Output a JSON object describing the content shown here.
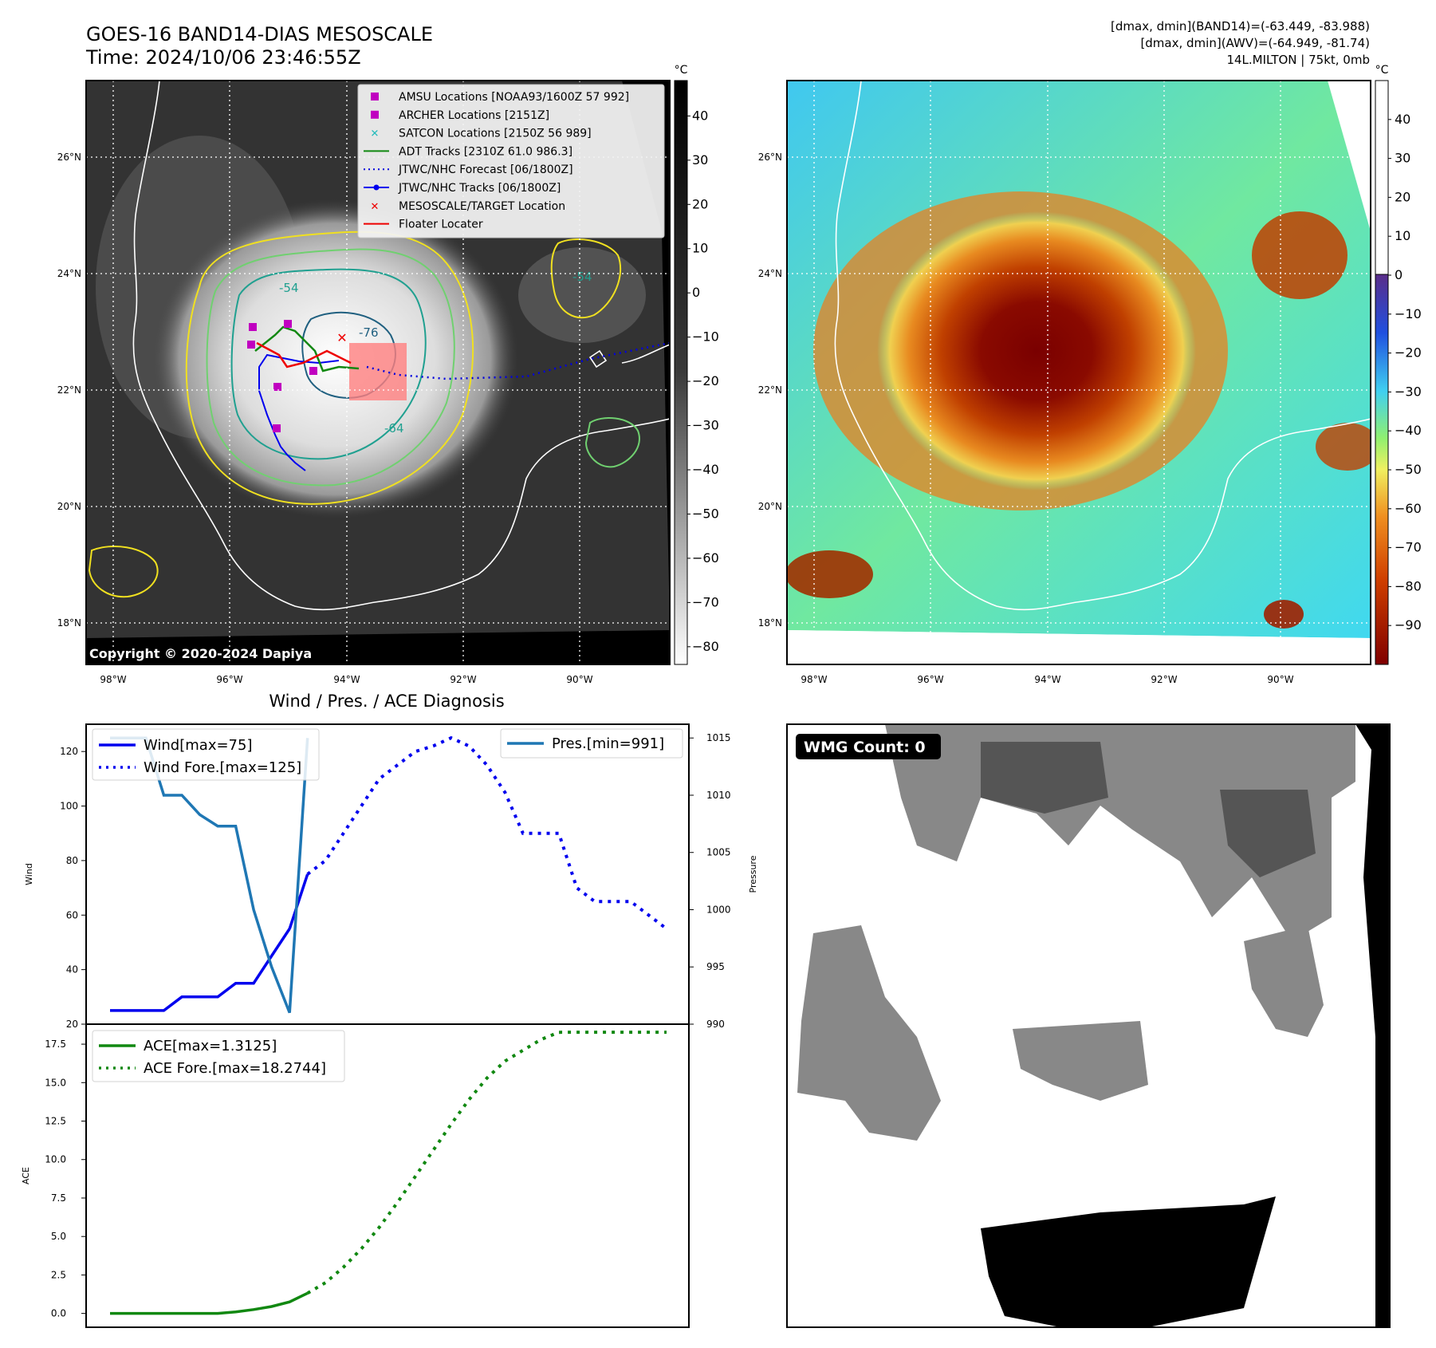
{
  "header": {
    "title_line1": "GOES-16 BAND14-DIAS MESOSCALE",
    "title_line2": "Time: 2024/10/06 23:46:55Z",
    "info_line1": "[dmax, dmin](BAND14)=(-63.449, -83.988)",
    "info_line2": "[dmax, dmin](AWV)=(-64.949, -81.74)",
    "info_line3": "14L.MILTON | 75kt, 0mb"
  },
  "ir_panel": {
    "copyright": "Copyright © 2020-2024 Dapiya",
    "contour_labels": [
      "-54",
      "-76",
      "-64",
      "-54"
    ]
  },
  "legend": [
    {
      "label": "AMSU Locations [NOAA93/1600Z 57 992]",
      "kind": "square",
      "color": "#c000c0"
    },
    {
      "label": "ARCHER Locations [2151Z]",
      "kind": "square",
      "color": "#c000c0"
    },
    {
      "label": "SATCON Locations [2150Z 56 989]",
      "kind": "x",
      "color": "#22bbbb"
    },
    {
      "label": "ADT Tracks [2310Z 61.0 986.3]",
      "kind": "line",
      "color": "#118811"
    },
    {
      "label": "JTWC/NHC Forecast [06/1800Z]",
      "kind": "dotted",
      "color": "#0000dd"
    },
    {
      "label": "JTWC/NHC Tracks [06/1800Z]",
      "kind": "dotline",
      "color": "#0000ee"
    },
    {
      "label": "MESOSCALE/TARGET Location",
      "kind": "x",
      "color": "#ee0000"
    },
    {
      "label": "Floater Locater",
      "kind": "line",
      "color": "#ee0000"
    }
  ],
  "map_axes": {
    "lon_ticks": [
      "98°W",
      "96°W",
      "94°W",
      "92°W",
      "90°W"
    ],
    "lat_ticks": [
      "26°N",
      "24°N",
      "22°N",
      "20°N",
      "18°N"
    ]
  },
  "colorbars": {
    "unit": "°C",
    "ir_ticks": [
      "40",
      "30",
      "20",
      "10",
      "0",
      "−10",
      "−20",
      "−30",
      "−40",
      "−50",
      "−60",
      "−70",
      "−80"
    ],
    "awv_ticks": [
      "40",
      "30",
      "20",
      "10",
      "0",
      "−10",
      "−20",
      "−30",
      "−40",
      "−50",
      "−60",
      "−70",
      "−80",
      "−90"
    ]
  },
  "wmg": {
    "label": "WMG Count: 0"
  },
  "chart_data": [
    {
      "type": "line",
      "title": "Wind / Pres. / ACE Diagnosis",
      "ylabel": "Wind",
      "y2label": "Pressure",
      "ylim": [
        20,
        130
      ],
      "y2lim": [
        990,
        1016.2
      ],
      "yticks": [
        20,
        40,
        60,
        80,
        100,
        120
      ],
      "y2ticks": [
        990,
        995,
        1000,
        1005,
        1010,
        1015
      ],
      "legend_left": [
        "Wind[max=75]",
        "Wind Fore.[max=125]"
      ],
      "legend_right": [
        "Pres.[min=991]"
      ],
      "series": [
        {
          "name": "Wind[max=75]",
          "style": "solid",
          "color": "#0000ee",
          "axis": "left",
          "x": [
            0,
            2,
            3,
            4,
            5,
            6,
            7,
            8,
            9,
            10
          ],
          "values": [
            25,
            25,
            25,
            30,
            30,
            30,
            35,
            35,
            45,
            55
          ]
        },
        {
          "name": "Wind_seg2",
          "style": "solid",
          "color": "#0000ee",
          "axis": "left",
          "x": [
            10,
            11
          ],
          "values": [
            55,
            75
          ]
        },
        {
          "name": "Wind Fore.[max=125]",
          "style": "dotted",
          "color": "#0000ee",
          "axis": "left",
          "x": [
            11,
            12,
            13,
            14,
            15,
            16,
            17,
            18,
            19,
            20,
            21,
            22,
            23,
            24,
            25,
            26,
            27,
            28,
            29,
            30,
            31
          ],
          "values": [
            75,
            80,
            90,
            100,
            110,
            115,
            120,
            122,
            125,
            122,
            115,
            105,
            90,
            90,
            90,
            70,
            65,
            65,
            65,
            60,
            55
          ]
        },
        {
          "name": "Pres.[min=991]",
          "style": "solid",
          "color": "#1f77b4",
          "axis": "right",
          "x": [
            0,
            1,
            2,
            3,
            4,
            5,
            6,
            7,
            8,
            9,
            10,
            11
          ],
          "values": [
            1015,
            1015,
            1015,
            1010,
            1010,
            1008.3,
            1007.3,
            1007.3,
            1000,
            995,
            991,
            1015
          ]
        }
      ]
    },
    {
      "type": "line",
      "ylabel": "ACE",
      "ylim": [
        -0.9,
        18.8
      ],
      "yticks": [
        "0.0",
        "2.5",
        "5.0",
        "7.5",
        "10.0",
        "12.5",
        "15.0",
        "17.5"
      ],
      "legend": [
        "ACE[max=1.3125]",
        "ACE Fore.[max=18.2744]"
      ],
      "series": [
        {
          "name": "ACE[max=1.3125]",
          "style": "solid",
          "color": "#118811",
          "x": [
            0,
            1,
            2,
            3,
            4,
            5,
            6,
            7,
            8,
            9,
            10,
            11
          ],
          "values": [
            0,
            0,
            0,
            0,
            0,
            0,
            0,
            0.1,
            0.25,
            0.45,
            0.75,
            1.3125
          ]
        },
        {
          "name": "ACE Fore.[max=18.2744]",
          "style": "dotted",
          "color": "#118811",
          "x": [
            11,
            12,
            13,
            14,
            15,
            16,
            17,
            18,
            19,
            20,
            21,
            22,
            23,
            24,
            25,
            26,
            27,
            28,
            29,
            30,
            31
          ],
          "values": [
            1.3125,
            2.0,
            3.0,
            4.2,
            5.6,
            7.2,
            8.9,
            10.6,
            12.3,
            13.9,
            15.3,
            16.4,
            17.1,
            17.8,
            18.27,
            18.2744,
            18.2744,
            18.2744,
            18.2744,
            18.2744,
            18.2744
          ]
        }
      ]
    }
  ]
}
